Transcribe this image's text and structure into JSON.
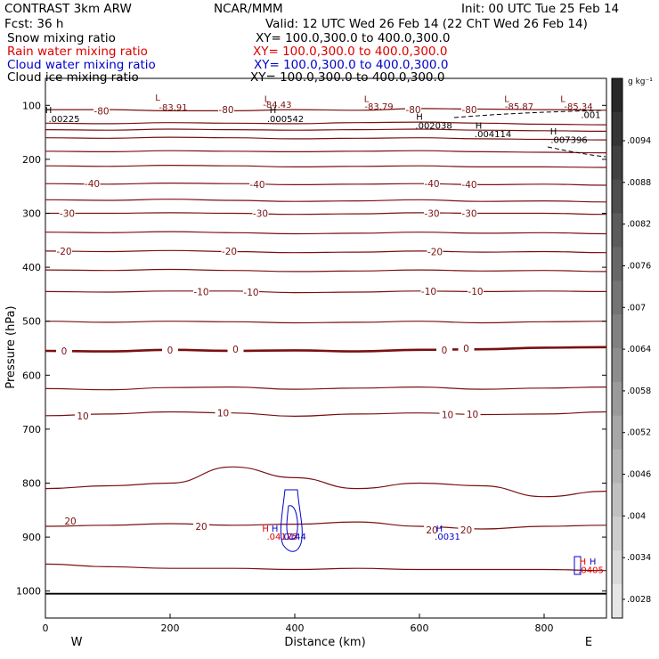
{
  "header": {
    "left_line1": "CONTRAST  3km ARW",
    "center_line1": "NCAR/MMM",
    "right_line1": "Init: 00 UTC Tue 25 Feb 14",
    "left_line2": "Fcst:     36 h",
    "right_line2": "Valid: 12 UTC Wed 26 Feb 14 (22 ChT Wed 26 Feb 14)",
    "fields": [
      {
        "name": "Snow mixing ratio",
        "xy": "XY= 100.0,300.0 to 400.0,300.0",
        "color": "#000000"
      },
      {
        "name": "Rain water mixing ratio",
        "xy": "XY= 100.0,300.0 to 400.0,300.0",
        "color": "#dd0000"
      },
      {
        "name": "Cloud water mixing ratio",
        "xy": "XY= 100.0,300.0 to 400.0,300.0",
        "color": "#0000cc"
      },
      {
        "name": "Cloud ice mixing ratio",
        "xy": "XY= 100.0,300.0 to 400.0,300.0",
        "color": "#000000"
      }
    ]
  },
  "colorbar": {
    "units": "g kg⁻¹",
    "ticks": [
      ".0094",
      ".0088",
      ".0082",
      ".0076",
      ".007",
      ".0064",
      ".0058",
      ".0052",
      ".0046",
      ".004",
      ".0034",
      ".0028"
    ]
  },
  "chart_data": {
    "type": "line",
    "xlabel": "Distance (km)",
    "ylabel": "Pressure (hPa)",
    "xlim": [
      0,
      900
    ],
    "ylim": [
      1050,
      50
    ],
    "xticks": [
      0,
      200,
      400,
      600,
      800
    ],
    "yticks": [
      100,
      200,
      300,
      400,
      500,
      600,
      700,
      800,
      900,
      1000
    ],
    "x_end_labels": {
      "left": "W",
      "right": "E"
    },
    "isotherm_color": "#7a1010",
    "isotherms": [
      {
        "name": "-80",
        "p": [
          108,
          108,
          110,
          110,
          108,
          109,
          106,
          107,
          108,
          109
        ]
      },
      {
        "name": "-70",
        "p": [
          133,
          134,
          132,
          133,
          134,
          132,
          131,
          133,
          135,
          136
        ]
      },
      {
        "name": "-60",
        "p": [
          145,
          146,
          144,
          145,
          146,
          145,
          144,
          146,
          147,
          148
        ]
      },
      {
        "name": "-55",
        "p": [
          160,
          161,
          159,
          160,
          162,
          161,
          160,
          162,
          163,
          164
        ]
      },
      {
        "name": "-50",
        "p": [
          185,
          186,
          184,
          185,
          186,
          185,
          184,
          186,
          187,
          188
        ]
      },
      {
        "name": "-45",
        "p": [
          212,
          213,
          211,
          212,
          214,
          213,
          212,
          214,
          214,
          215
        ]
      },
      {
        "name": "-40",
        "p": [
          245,
          246,
          244,
          245,
          247,
          246,
          245,
          247,
          246,
          248
        ]
      },
      {
        "name": "-35",
        "p": [
          275,
          276,
          274,
          276,
          278,
          277,
          275,
          278,
          277,
          279
        ]
      },
      {
        "name": "-30",
        "p": [
          300,
          300,
          299,
          300,
          302,
          301,
          299,
          300,
          300,
          302
        ]
      },
      {
        "name": "-25",
        "p": [
          335,
          336,
          334,
          336,
          338,
          337,
          335,
          337,
          336,
          338
        ]
      },
      {
        "name": "-20",
        "p": [
          370,
          371,
          369,
          371,
          373,
          372,
          370,
          372,
          371,
          373
        ]
      },
      {
        "name": "-15",
        "p": [
          405,
          406,
          404,
          406,
          408,
          407,
          405,
          407,
          406,
          408
        ]
      },
      {
        "name": "-10",
        "p": [
          445,
          446,
          444,
          444,
          447,
          446,
          444,
          445,
          444,
          445
        ]
      },
      {
        "name": "-5",
        "p": [
          500,
          502,
          500,
          501,
          503,
          502,
          500,
          503,
          501,
          500
        ]
      },
      {
        "name": "0",
        "p": [
          555,
          556,
          553,
          555,
          554,
          556,
          553,
          552,
          549,
          548
        ]
      },
      {
        "name": "5",
        "p": [
          625,
          627,
          623,
          622,
          626,
          624,
          622,
          626,
          624,
          622
        ]
      },
      {
        "name": "10",
        "p": [
          675,
          672,
          668,
          670,
          676,
          672,
          670,
          673,
          672,
          668
        ]
      },
      {
        "name": "15",
        "p": [
          810,
          805,
          800,
          770,
          790,
          810,
          800,
          805,
          825,
          815
        ]
      },
      {
        "name": "20",
        "p": [
          880,
          878,
          875,
          878,
          876,
          872,
          880,
          885,
          880,
          878
        ]
      },
      {
        "name": "25",
        "p": [
          950,
          955,
          958,
          958,
          960,
          958,
          960,
          960,
          960,
          962
        ]
      },
      {
        "name": "surface",
        "p": [
          1005,
          1005,
          1005,
          1005,
          1005,
          1005,
          1005,
          1005,
          1005,
          1005
        ]
      }
    ],
    "isotherm_labels": [
      {
        "text": "-80",
        "x": 90,
        "p": 110
      },
      {
        "text": "-80",
        "x": 290,
        "p": 108
      },
      {
        "text": "-80",
        "x": 590,
        "p": 108
      },
      {
        "text": "-80",
        "x": 680,
        "p": 108
      },
      {
        "text": "-40",
        "x": 75,
        "p": 245
      },
      {
        "text": "-40",
        "x": 340,
        "p": 246
      },
      {
        "text": "-40",
        "x": 620,
        "p": 245
      },
      {
        "text": "-40",
        "x": 680,
        "p": 246
      },
      {
        "text": "-30",
        "x": 35,
        "p": 300
      },
      {
        "text": "-30",
        "x": 345,
        "p": 300
      },
      {
        "text": "-30",
        "x": 620,
        "p": 300
      },
      {
        "text": "-30",
        "x": 680,
        "p": 300
      },
      {
        "text": "-20",
        "x": 30,
        "p": 370
      },
      {
        "text": "-20",
        "x": 295,
        "p": 370
      },
      {
        "text": "-20",
        "x": 625,
        "p": 371
      },
      {
        "text": "-10",
        "x": 250,
        "p": 445
      },
      {
        "text": "-10",
        "x": 330,
        "p": 446
      },
      {
        "text": "-10",
        "x": 615,
        "p": 444
      },
      {
        "text": "-10",
        "x": 690,
        "p": 444
      },
      {
        "text": "0",
        "x": 30,
        "p": 555
      },
      {
        "text": "0",
        "x": 200,
        "p": 553
      },
      {
        "text": "0",
        "x": 305,
        "p": 552
      },
      {
        "text": "0",
        "x": 640,
        "p": 553
      },
      {
        "text": "0",
        "x": 675,
        "p": 550
      },
      {
        "text": "10",
        "x": 60,
        "p": 675
      },
      {
        "text": "10",
        "x": 285,
        "p": 670
      },
      {
        "text": "10",
        "x": 645,
        "p": 673
      },
      {
        "text": "10",
        "x": 685,
        "p": 672
      },
      {
        "text": "20",
        "x": 40,
        "p": 870
      },
      {
        "text": "20",
        "x": 250,
        "p": 880
      },
      {
        "text": "20",
        "x": 620,
        "p": 887
      },
      {
        "text": "20",
        "x": 675,
        "p": 887
      }
    ],
    "extrema_labels": [
      {
        "text": "L",
        "x": 180,
        "p": 85,
        "color": "#7a1010"
      },
      {
        "text": "-83.91",
        "x": 205,
        "p": 103,
        "color": "#7a1010"
      },
      {
        "text": "L",
        "x": 355,
        "p": 87,
        "color": "#7a1010"
      },
      {
        "text": "-84.43",
        "x": 372,
        "p": 98,
        "color": "#7a1010"
      },
      {
        "text": "L",
        "x": 515,
        "p": 87,
        "color": "#7a1010"
      },
      {
        "text": "-83.79",
        "x": 535,
        "p": 101,
        "color": "#7a1010"
      },
      {
        "text": "L",
        "x": 740,
        "p": 87,
        "color": "#7a1010"
      },
      {
        "text": "-85.87",
        "x": 760,
        "p": 101,
        "color": "#7a1010"
      },
      {
        "text": "L",
        "x": 830,
        "p": 87,
        "color": "#7a1010"
      },
      {
        "text": "-85.34",
        "x": 855,
        "p": 101,
        "color": "#7a1010"
      },
      {
        "text": "H",
        "x": 5,
        "p": 108,
        "color": "#000000"
      },
      {
        "text": ".00225",
        "x": 30,
        "p": 124,
        "color": "#000000"
      },
      {
        "text": "H",
        "x": 365,
        "p": 108,
        "color": "#000000"
      },
      {
        "text": ".000542",
        "x": 385,
        "p": 124,
        "color": "#000000"
      },
      {
        "text": "H",
        "x": 600,
        "p": 120,
        "color": "#000000"
      },
      {
        "text": ".002038",
        "x": 623,
        "p": 137,
        "color": "#000000"
      },
      {
        "text": "H",
        "x": 695,
        "p": 137,
        "color": "#000000"
      },
      {
        "text": ".004114",
        "x": 718,
        "p": 152,
        "color": "#000000"
      },
      {
        "text": "H",
        "x": 815,
        "p": 147,
        "color": "#000000"
      },
      {
        "text": ".007396",
        "x": 840,
        "p": 163,
        "color": "#000000"
      },
      {
        "text": ".001",
        "x": 875,
        "p": 117,
        "color": "#000000"
      },
      {
        "text": "H",
        "x": 353,
        "p": 883,
        "color": "#dd0000"
      },
      {
        "text": "H",
        "x": 368,
        "p": 883,
        "color": "#0000cc"
      },
      {
        "text": ".04125",
        "x": 380,
        "p": 898,
        "color": "#dd0000"
      },
      {
        "text": ".0144",
        "x": 398,
        "p": 898,
        "color": "#0000cc"
      },
      {
        "text": "H",
        "x": 632,
        "p": 883,
        "color": "#0000cc"
      },
      {
        "text": ".0031",
        "x": 645,
        "p": 898,
        "color": "#0000cc"
      },
      {
        "text": "H",
        "x": 862,
        "p": 944,
        "color": "#dd0000"
      },
      {
        "text": "H",
        "x": 878,
        "p": 944,
        "color": "#0000cc"
      },
      {
        "text": ".0405",
        "x": 875,
        "p": 960,
        "color": "#dd0000"
      }
    ]
  }
}
